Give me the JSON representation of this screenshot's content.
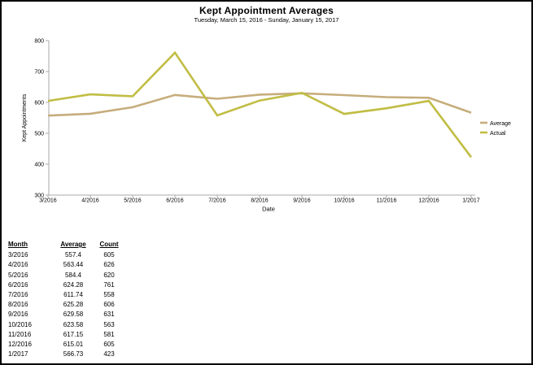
{
  "title": "Kept Appointment Averages",
  "subtitle": "Tuesday, March 15, 2016 - Sunday, January 15, 2017",
  "chart_data": {
    "type": "line",
    "title": "Kept Appointment Averages",
    "xlabel": "Date",
    "ylabel": "Kept Appointments",
    "ylim": [
      300,
      800
    ],
    "yticks": [
      300,
      400,
      500,
      600,
      700,
      800
    ],
    "grid": false,
    "legend_position": "right",
    "categories": [
      "3/2016",
      "4/2016",
      "5/2016",
      "6/2016",
      "7/2016",
      "8/2016",
      "9/2016",
      "10/2016",
      "11/2016",
      "12/2016",
      "1/2017"
    ],
    "series": [
      {
        "name": "Average",
        "color": "#c6ad7c",
        "values": [
          557.4,
          563.44,
          584.4,
          624.28,
          611.74,
          625.28,
          629.58,
          623.58,
          617.15,
          615.01,
          566.73
        ]
      },
      {
        "name": "Actual",
        "color": "#c1bd44",
        "values": [
          605,
          626,
          620,
          761,
          558,
          606,
          631,
          563,
          581,
          605,
          423
        ]
      }
    ],
    "axis_color": "#a8a8a8"
  },
  "table": {
    "columns": [
      "Month",
      "Average",
      "Count"
    ],
    "rows": [
      [
        "3/2016",
        "557.4",
        "605"
      ],
      [
        "4/2016",
        "563.44",
        "626"
      ],
      [
        "5/2016",
        "584.4",
        "620"
      ],
      [
        "6/2016",
        "624.28",
        "761"
      ],
      [
        "7/2016",
        "611.74",
        "558"
      ],
      [
        "8/2016",
        "625.28",
        "606"
      ],
      [
        "9/2016",
        "629.58",
        "631"
      ],
      [
        "10/2016",
        "623.58",
        "563"
      ],
      [
        "11/2016",
        "617.15",
        "581"
      ],
      [
        "12/2016",
        "615.01",
        "605"
      ],
      [
        "1/2017",
        "566.73",
        "423"
      ]
    ]
  }
}
